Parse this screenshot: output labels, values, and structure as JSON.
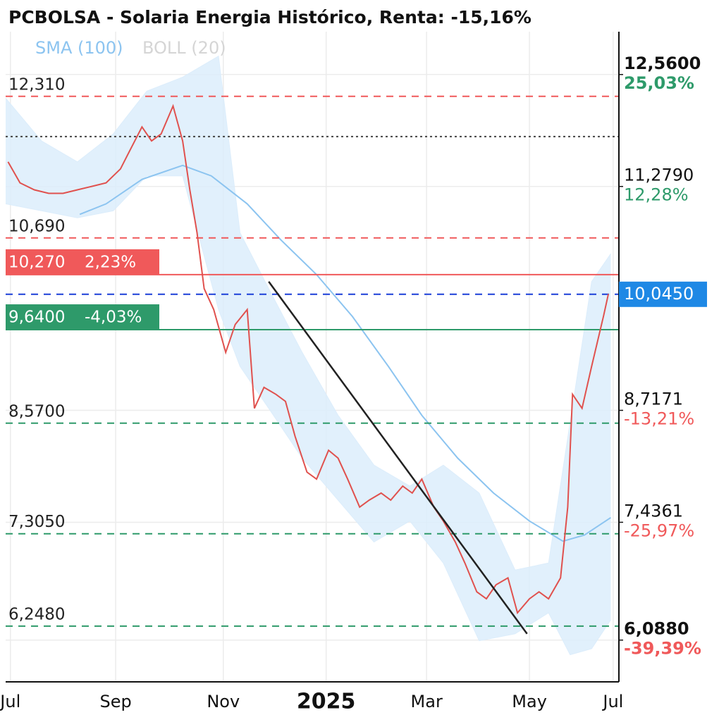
{
  "chart_data": {
    "type": "line",
    "title": "PCBOLSA - Solaria Energia Histórico, Renta: -15,16%",
    "xlim": [
      -2,
      254.4
    ],
    "ylim": [
      5.61,
      13.05
    ],
    "xticks": [
      {
        "value": 0,
        "label": "Jul"
      },
      {
        "value": 44,
        "label": "Sep"
      },
      {
        "value": 89,
        "label": "Nov"
      },
      {
        "value": 132,
        "label": "2025"
      },
      {
        "value": 174,
        "label": "Mar"
      },
      {
        "value": 217,
        "label": "May"
      },
      {
        "value": 252,
        "label": "Jul"
      }
    ],
    "grid": true,
    "price": {
      "color": "#e0514e",
      "x": [
        -1,
        4,
        10,
        16,
        22,
        28,
        34,
        40,
        46,
        49,
        55,
        59,
        63,
        68,
        72,
        75,
        78,
        81,
        85,
        90,
        94,
        99,
        102,
        106,
        111,
        115,
        119,
        124,
        128,
        133,
        137,
        141,
        146,
        150,
        155,
        159,
        164,
        168,
        172,
        177,
        181,
        186,
        190,
        195,
        199,
        203,
        208,
        212,
        217,
        221,
        225,
        230,
        233,
        235,
        239,
        243,
        248,
        250
      ],
      "values": [
        11.56,
        11.32,
        11.24,
        11.2,
        11.2,
        11.24,
        11.28,
        11.32,
        11.48,
        11.64,
        11.96,
        11.8,
        11.88,
        12.2,
        11.8,
        11.24,
        10.75,
        10.11,
        9.87,
        9.38,
        9.7,
        9.87,
        8.74,
        8.98,
        8.9,
        8.82,
        8.42,
        8.01,
        7.93,
        8.26,
        8.17,
        7.93,
        7.61,
        7.69,
        7.77,
        7.69,
        7.85,
        7.77,
        7.93,
        7.61,
        7.45,
        7.21,
        6.97,
        6.64,
        6.56,
        6.72,
        6.8,
        6.4,
        6.56,
        6.64,
        6.56,
        6.8,
        7.61,
        8.9,
        8.74,
        9.22,
        9.8,
        10.05
      ]
    },
    "sma": {
      "name": "SMA (100)",
      "color": "#8cc4f0",
      "x": [
        29,
        40,
        55,
        72,
        84,
        99,
        113,
        128,
        143,
        158,
        172,
        187,
        202,
        217,
        231,
        240,
        251
      ],
      "values": [
        10.96,
        11.08,
        11.36,
        11.52,
        11.4,
        11.08,
        10.67,
        10.27,
        9.79,
        9.22,
        8.66,
        8.17,
        7.77,
        7.45,
        7.22,
        7.29,
        7.49
      ]
    },
    "boll": {
      "name": "BOLL (20)",
      "color": "#d5d5d5",
      "fill": "#dcedfb",
      "x": [
        -2,
        13,
        28,
        43,
        57,
        72,
        87,
        96,
        108,
        122,
        137,
        152,
        167,
        181,
        196,
        211,
        225,
        234,
        243,
        251
      ],
      "upper": [
        12.29,
        11.8,
        11.56,
        11.88,
        12.37,
        12.53,
        12.77,
        10.75,
        10.11,
        9.38,
        8.66,
        8.09,
        7.85,
        8.09,
        7.77,
        6.89,
        6.97,
        8.58,
        10.19,
        10.51
      ],
      "lower": [
        11.08,
        11.0,
        10.92,
        11.0,
        11.4,
        11.4,
        9.87,
        9.22,
        8.74,
        8.17,
        7.69,
        7.21,
        7.45,
        6.97,
        6.08,
        6.16,
        6.4,
        5.92,
        5.99,
        6.32
      ]
    },
    "trendline": {
      "color": "#222222",
      "x": [
        108,
        216
      ],
      "values": [
        10.19,
        6.16
      ]
    },
    "levels": [
      {
        "value": 12.31,
        "label": "12,310",
        "color": "#f0595a",
        "style": "dashed"
      },
      {
        "value": 11.85,
        "color": "#444444",
        "style": "dotted"
      },
      {
        "value": 10.69,
        "label": "10,690",
        "color": "#f0595a",
        "style": "dashed"
      },
      {
        "value": 10.27,
        "label": "10,270",
        "change": "2,23%",
        "color": "#f0595a",
        "style": "solid"
      },
      {
        "value": 10.045,
        "color": "#1a3fd8",
        "style": "dashed"
      },
      {
        "value": 9.64,
        "label": "9,6400",
        "change": "-4,03%",
        "color": "#2e9a6a",
        "style": "solid"
      },
      {
        "value": 8.57,
        "label": "8,5700",
        "color": "#2e9a6a",
        "style": "dashed"
      },
      {
        "value": 7.305,
        "label": "7,3050",
        "color": "#2e9a6a",
        "style": "dashed"
      },
      {
        "value": 6.248,
        "label": "6,2480",
        "color": "#2e9a6a",
        "style": "dashed"
      }
    ],
    "right_labels": [
      {
        "value": 12.56,
        "label": "12,5600",
        "change": "25,03%",
        "color": "#2e9a6a"
      },
      {
        "value": 11.279,
        "label": "11,2790",
        "change": "12,28%",
        "color": "#2e9a6a"
      },
      {
        "value": 8.7171,
        "label": "8,7171",
        "change": "-13,21%",
        "color": "#f0595a"
      },
      {
        "value": 7.4361,
        "label": "7,4361",
        "change": "-25,97%",
        "color": "#f0595a"
      },
      {
        "value": 6.088,
        "label": "6,0880",
        "change": "-39,39%",
        "color": "#f0595a"
      }
    ],
    "current": {
      "value": 10.045,
      "label": "10,0450",
      "color": "#1e88e5"
    }
  }
}
